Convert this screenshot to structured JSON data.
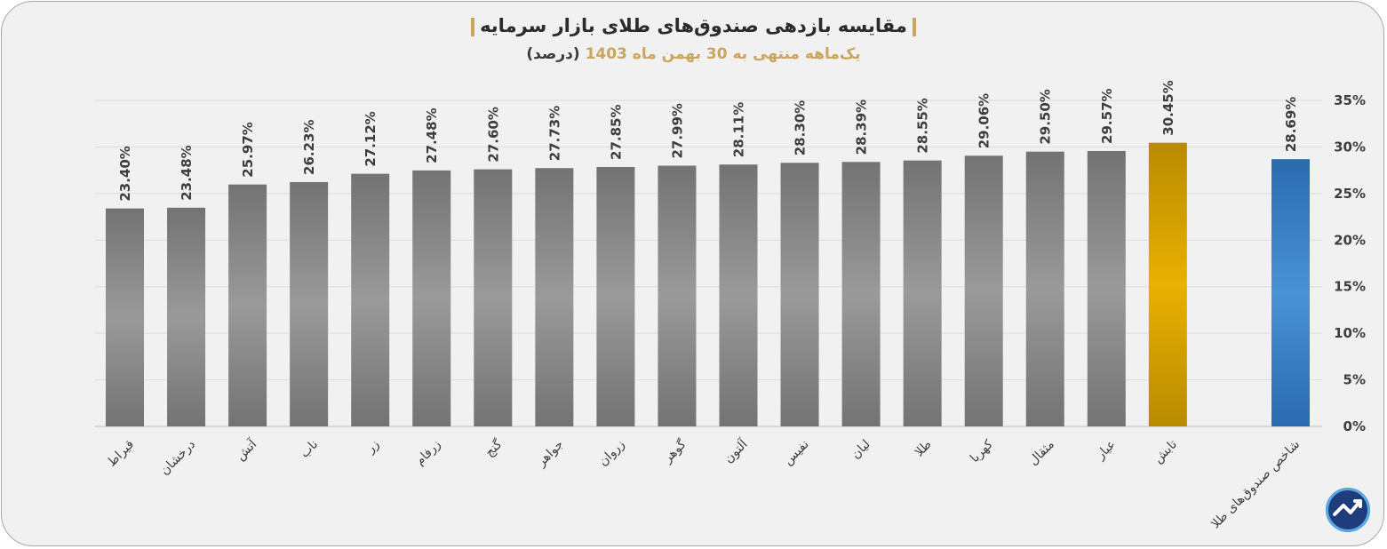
{
  "title": "مقایسه بازدهی صندوق‌های طلای بازار سرمایه",
  "subtitle": {
    "main": "یک‌ماهه منتهی به 30 بهمن ماه 1403",
    "unit": "(درصد)"
  },
  "chart_data": {
    "type": "bar",
    "categories": [
      "قیراط",
      "درخشان",
      "آتش",
      "ناب",
      "زر",
      "زرفام",
      "گنج",
      "جواهر",
      "زروان",
      "گوهر",
      "آلتون",
      "نفیس",
      "لیان",
      "طلا",
      "کهربا",
      "مثقال",
      "عیار",
      "تابش",
      "شاخص صندوق‌های طلا"
    ],
    "values": [
      23.4,
      23.48,
      25.97,
      26.23,
      27.12,
      27.48,
      27.6,
      27.73,
      27.85,
      27.99,
      28.11,
      28.3,
      28.39,
      28.55,
      29.06,
      29.5,
      29.57,
      30.45,
      28.69
    ],
    "data_labels": [
      "23.40%",
      "23.48%",
      "25.97%",
      "26.23%",
      "27.12%",
      "27.48%",
      "27.60%",
      "27.73%",
      "27.85%",
      "27.99%",
      "28.11%",
      "28.30%",
      "28.39%",
      "28.55%",
      "29.06%",
      "29.50%",
      "29.57%",
      "30.45%",
      "28.69%"
    ],
    "bar_styles": [
      "gray",
      "gray",
      "gray",
      "gray",
      "gray",
      "gray",
      "gray",
      "gray",
      "gray",
      "gray",
      "gray",
      "gray",
      "gray",
      "gray",
      "gray",
      "gray",
      "gray",
      "gold",
      "blue"
    ],
    "y_ticks": [
      "0%",
      "5%",
      "10%",
      "15%",
      "20%",
      "25%",
      "30%",
      "35%"
    ],
    "ylim": [
      0,
      35
    ],
    "y_axis_position": "right",
    "grid": true,
    "legend": "none"
  },
  "colors": {
    "gray_mid": "#9a9a9a",
    "gray_edge": "#707070",
    "gold_mid": "#e9b100",
    "gold_edge": "#b88a00",
    "blue_mid": "#4a92d6",
    "blue_edge": "#2a6aae",
    "grid": "#dcdcdc",
    "text": "#3d3d3d",
    "accent": "#c9a55e"
  },
  "logo": {
    "icon": "trend-arrow-logo-icon"
  }
}
